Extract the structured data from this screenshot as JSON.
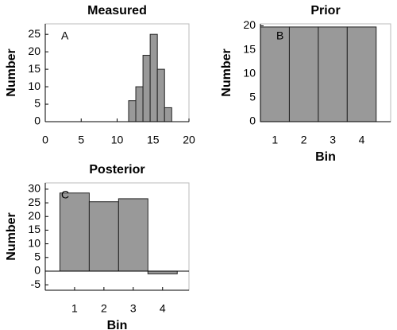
{
  "chart_data": [
    {
      "type": "histogram",
      "title": "Measured",
      "panel_label": "A",
      "ylabel": "Number",
      "bins": [
        11.6,
        12.6,
        13.6,
        14.6,
        15.6,
        16.6,
        17.6
      ],
      "values": [
        6,
        10,
        19,
        25,
        15,
        4
      ],
      "color": "#999999",
      "xlim": [
        0,
        20
      ],
      "xticks": [
        0,
        5,
        10,
        15,
        20
      ],
      "ylim": [
        0,
        28
      ],
      "yticks": [
        0,
        5,
        10,
        15,
        20,
        25
      ]
    },
    {
      "type": "bar",
      "title": "Prior",
      "panel_label": "B",
      "ylabel": "Number",
      "xlabel": "Bin",
      "x": [
        1,
        2,
        3,
        4
      ],
      "values": [
        19.75,
        19.75,
        19.75,
        19.75
      ],
      "color": "#999999",
      "xlim": [
        0.5,
        5
      ],
      "xticks": [
        1,
        2,
        3,
        4
      ],
      "ylim": [
        0,
        20.4
      ],
      "yticks": [
        0,
        5,
        10,
        15,
        20
      ]
    },
    {
      "type": "bar",
      "title": "Posterior",
      "panel_label": "C",
      "ylabel": "Number",
      "xlabel": "Bin",
      "x": [
        1,
        2,
        3,
        4
      ],
      "values": [
        28.6,
        25.4,
        26.5,
        -1
      ],
      "color": "#999999",
      "xlim": [
        0,
        4.9
      ],
      "xticks": [
        1,
        2,
        3,
        4
      ],
      "ylim": [
        -7,
        32.3
      ],
      "yticks": [
        -5,
        0,
        5,
        10,
        15,
        20,
        25,
        30
      ]
    }
  ]
}
